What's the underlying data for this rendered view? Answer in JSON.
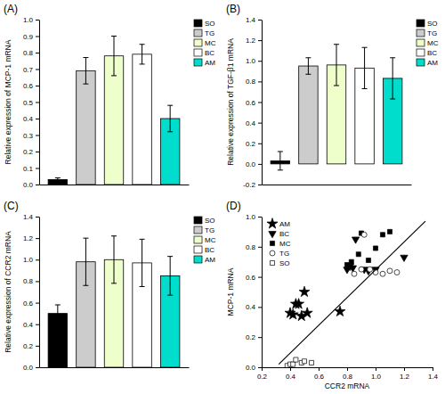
{
  "chart_data": [
    {
      "type": "bar",
      "title": "(A)",
      "ylabel": "Relative expression of MCP-1 mRNA",
      "categories": [
        "SO",
        "TG",
        "MC",
        "BC",
        "AM"
      ],
      "values": [
        0.03,
        0.69,
        0.78,
        0.79,
        0.4
      ],
      "errors": [
        0.01,
        0.08,
        0.12,
        0.06,
        0.08
      ],
      "colors": [
        "black",
        "#cccccc",
        "#eeffcc",
        "white",
        "#00ddcc"
      ],
      "ylim": [
        0,
        1.0
      ],
      "yticks": [
        {
          "value": 0,
          "label": "0.0"
        },
        0.1,
        0.2,
        0.3,
        0.4,
        0.5,
        0.6,
        0.7,
        0.8,
        0.9,
        {
          "value": 1.0,
          "label": "1.0"
        }
      ],
      "legend": "upper right",
      "tick_labels": "y"
    },
    {
      "type": "bar",
      "title": "(B)",
      "ylabel": "Relative expression of TGF-β1 mRNA",
      "categories": [
        "SO",
        "TG",
        "MC",
        "BC",
        "AM"
      ],
      "values": [
        0.03,
        0.95,
        0.96,
        0.93,
        0.83
      ],
      "errors": [
        0.09,
        0.08,
        0.2,
        0.2,
        0.2
      ],
      "colors": [
        "black",
        "#cccccc",
        "#eeffcc",
        "white",
        "#00ddcc"
      ],
      "ylim": [
        -0.2,
        1.4
      ],
      "yticks": [
        -0.2,
        {
          "value": 0,
          "label": "0.0"
        },
        0.2,
        0.4,
        0.6,
        0.8,
        {
          "value": 1.0,
          "label": "1.0"
        },
        1.2,
        1.4
      ],
      "legend": "upper right",
      "tick_labels": "y"
    },
    {
      "type": "bar",
      "title": "(C)",
      "ylabel": "Relative expression of CCR2 mRNA",
      "categories": [
        "SO",
        "TG",
        "MC",
        "BC",
        "AM"
      ],
      "values": [
        0.5,
        0.98,
        1.0,
        0.97,
        0.85
      ],
      "errors": [
        0.08,
        0.22,
        0.22,
        0.22,
        0.18
      ],
      "colors": [
        "black",
        "#cccccc",
        "#eeffcc",
        "white",
        "#00ddcc"
      ],
      "ylim": [
        0,
        1.4
      ],
      "yticks": [
        {
          "value": 0,
          "label": "0.0"
        },
        0.2,
        0.4,
        0.6,
        0.8,
        {
          "value": 1.0,
          "label": "1.0"
        },
        1.2,
        1.4
      ],
      "legend": "upper right",
      "tick_labels": "y"
    },
    {
      "type": "scatter",
      "title": "(D)",
      "xlabel": "CCR2 mRNA",
      "ylabel": "MCP-1 mRNA",
      "xlim": [
        0.2,
        1.4
      ],
      "ylim": [
        0.0,
        1.0
      ],
      "xticks": [
        0.2,
        0.4,
        0.6,
        0.8,
        {
          "value": 1.0,
          "label": "1.0"
        },
        1.2,
        1.4
      ],
      "yticks": [
        {
          "value": 0.0,
          "label": "0.0"
        },
        0.2,
        0.4,
        0.6,
        0.8,
        {
          "value": 1.0,
          "label": "1.0"
        }
      ],
      "legend": "upper left",
      "series": [
        {
          "name": "AM",
          "marker": "star",
          "color": "black",
          "x": [
            0.4,
            0.42,
            0.44,
            0.46,
            0.48,
            0.5,
            0.52,
            0.75
          ],
          "values": [
            0.36,
            0.35,
            0.42,
            0.42,
            0.34,
            0.5,
            0.36,
            0.37
          ]
        },
        {
          "name": "BC",
          "marker": "triangle-down",
          "color": "black",
          "x": [
            0.8,
            0.82,
            0.84,
            0.86,
            0.92,
            0.95,
            1.0,
            1.2
          ],
          "values": [
            0.65,
            0.67,
            0.66,
            0.85,
            0.65,
            0.64,
            0.65,
            0.73
          ]
        },
        {
          "name": "MC",
          "marker": "square",
          "color": "black",
          "x": [
            0.8,
            0.83,
            0.88,
            0.9,
            0.95,
            1.0,
            1.05,
            1.1
          ],
          "values": [
            0.68,
            0.7,
            0.75,
            0.89,
            0.71,
            0.79,
            0.88,
            0.9
          ]
        },
        {
          "name": "TG",
          "marker": "circle",
          "color": "white",
          "x": [
            0.85,
            0.9,
            0.92,
            0.96,
            1.0,
            1.05,
            1.1,
            1.15
          ],
          "values": [
            0.62,
            0.65,
            0.88,
            0.65,
            0.63,
            0.62,
            0.64,
            0.63
          ]
        },
        {
          "name": "SO",
          "marker": "square",
          "color": "white",
          "x": [
            0.38,
            0.4,
            0.42,
            0.44,
            0.48,
            0.5,
            0.55
          ],
          "values": [
            0.01,
            0.02,
            0.02,
            0.05,
            0.03,
            0.04,
            0.03
          ]
        },
        {
          "type": "line",
          "line_style": "solid",
          "color": "black",
          "x": [
            0.32,
            1.35
          ],
          "values": [
            0.02,
            0.97
          ]
        }
      ]
    }
  ]
}
